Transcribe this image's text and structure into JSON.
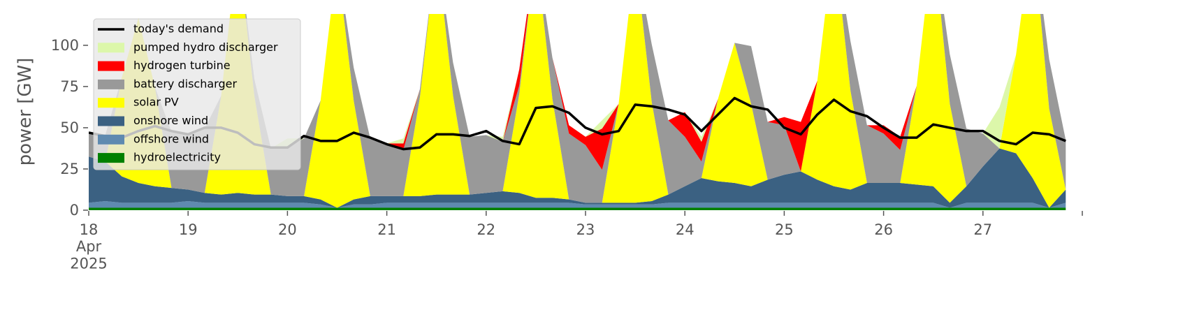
{
  "chart_data": {
    "type": "area",
    "ylabel": "power [GW]",
    "xlim": [
      0,
      240
    ],
    "ylim": [
      0,
      119
    ],
    "yticks": [
      0,
      25,
      50,
      75,
      100
    ],
    "xticks": [
      {
        "value": 0,
        "label": "18\nApr\n2025"
      },
      {
        "value": 24,
        "label": "19"
      },
      {
        "value": 48,
        "label": "20"
      },
      {
        "value": 72,
        "label": "21"
      },
      {
        "value": 96,
        "label": "22"
      },
      {
        "value": 120,
        "label": "23"
      },
      {
        "value": 144,
        "label": "24"
      },
      {
        "value": 168,
        "label": "25"
      },
      {
        "value": 192,
        "label": "26"
      },
      {
        "value": 216,
        "label": "27"
      },
      {
        "value": 240,
        "label": ""
      }
    ],
    "x": [
      0,
      4,
      8,
      12,
      16,
      20,
      24,
      28,
      32,
      36,
      40,
      44,
      48,
      52,
      56,
      60,
      64,
      68,
      72,
      76,
      80,
      84,
      88,
      92,
      96,
      100,
      104,
      108,
      112,
      116,
      120,
      124,
      128,
      132,
      136,
      140,
      144,
      148,
      152,
      156,
      160,
      164,
      168,
      172,
      176,
      180,
      184,
      188,
      192,
      196,
      200,
      204,
      208,
      212,
      216,
      220,
      224,
      228,
      232,
      236
    ],
    "series": [
      {
        "name": "today's demand",
        "type": "line",
        "color": "#000000",
        "values": [
          47,
          45,
          44,
          48,
          51,
          48,
          46,
          50,
          50,
          47,
          40,
          38,
          38,
          45,
          42,
          42,
          47,
          44,
          40,
          37,
          38,
          46,
          46,
          45,
          48,
          42,
          40,
          62,
          63,
          59,
          50,
          46,
          48,
          64,
          63,
          61,
          58,
          48,
          58,
          68,
          63,
          61,
          50,
          46,
          58,
          67,
          60,
          57,
          50,
          44,
          44,
          52,
          50,
          48,
          48,
          42,
          40,
          47,
          46,
          42
        ]
      },
      {
        "name": "pumped hydro discharger",
        "color": "#dcf7aa",
        "values": [
          0,
          0,
          0,
          0,
          0,
          0,
          0,
          0,
          0,
          0,
          0,
          0,
          5,
          0,
          0,
          0,
          0,
          0,
          0,
          3,
          0,
          0,
          0,
          0,
          0,
          3,
          0,
          0,
          0,
          0,
          0,
          5,
          0,
          0,
          0,
          0,
          0,
          3,
          0,
          0,
          0,
          0,
          0,
          0,
          0,
          0,
          0,
          0,
          0,
          0,
          0,
          0,
          0,
          0,
          0,
          25,
          0,
          0,
          0,
          0
        ]
      },
      {
        "name": "hydrogen turbine",
        "color": "#ff0000",
        "values": [
          0,
          0,
          0,
          0,
          0,
          0,
          0,
          0,
          0,
          0,
          0,
          0,
          0,
          0,
          0,
          0,
          0,
          0,
          0,
          4,
          0,
          0,
          0,
          0,
          0,
          0,
          10,
          0,
          0,
          5,
          5,
          25,
          0,
          0,
          0,
          0,
          15,
          12,
          0,
          0,
          0,
          0,
          5,
          30,
          0,
          0,
          0,
          0,
          5,
          8,
          0,
          0,
          0,
          0,
          0,
          0,
          0,
          0,
          0,
          0
        ]
      },
      {
        "name": "battery discharger",
        "color": "#999999",
        "values": [
          15,
          16,
          0,
          0,
          0,
          34,
          34,
          39,
          0,
          0,
          10,
          28,
          30,
          35,
          0,
          0,
          20,
          35,
          32,
          28,
          5,
          0,
          20,
          35,
          35,
          30,
          5,
          0,
          25,
          40,
          35,
          20,
          0,
          0,
          35,
          45,
          30,
          10,
          0,
          0,
          35,
          35,
          30,
          0,
          0,
          0,
          30,
          35,
          30,
          20,
          0,
          0,
          30,
          35,
          20,
          0,
          0,
          0,
          30,
          30
        ]
      },
      {
        "name": "solar PV",
        "color": "#ffff00",
        "values": [
          0,
          0,
          60,
          100,
          60,
          0,
          0,
          0,
          60,
          150,
          60,
          0,
          0,
          0,
          60,
          150,
          60,
          0,
          0,
          0,
          60,
          150,
          60,
          0,
          0,
          0,
          60,
          150,
          60,
          0,
          0,
          0,
          60,
          150,
          60,
          0,
          0,
          0,
          50,
          85,
          50,
          0,
          0,
          0,
          60,
          150,
          60,
          0,
          0,
          0,
          60,
          150,
          60,
          0,
          0,
          0,
          60,
          150,
          60,
          0
        ]
      },
      {
        "name": "onshore wind",
        "color": "#3b6182",
        "values": [
          28,
          24,
          16,
          12,
          10,
          9,
          7,
          6,
          5,
          6,
          5,
          5,
          4,
          4,
          3,
          0,
          3,
          5,
          4,
          4,
          4,
          5,
          5,
          5,
          6,
          7,
          6,
          3,
          3,
          2,
          1,
          1,
          1,
          1,
          2,
          5,
          10,
          15,
          13,
          12,
          10,
          14,
          17,
          19,
          14,
          10,
          8,
          12,
          12,
          12,
          11,
          10,
          3,
          10,
          22,
          33,
          30,
          15,
          0,
          8
        ]
      },
      {
        "name": "offshore wind",
        "color": "#5f8ab0",
        "values": [
          3,
          4,
          3,
          3,
          3,
          3,
          4,
          3,
          3,
          3,
          3,
          3,
          3,
          3,
          2,
          0,
          2,
          2,
          3,
          3,
          3,
          3,
          3,
          3,
          3,
          3,
          3,
          3,
          3,
          3,
          2,
          2,
          2,
          2,
          2,
          3,
          3,
          3,
          3,
          3,
          3,
          3,
          3,
          3,
          3,
          3,
          3,
          3,
          3,
          3,
          3,
          3,
          0,
          3,
          3,
          3,
          3,
          3,
          0,
          3
        ]
      },
      {
        "name": "hydroelectricity",
        "color": "#008000",
        "values": [
          1.5,
          1.5,
          1.5,
          1.5,
          1.5,
          1.5,
          1.5,
          1.5,
          1.5,
          1.5,
          1.5,
          1.5,
          1.5,
          1.5,
          1.5,
          1.5,
          1.5,
          1.5,
          1.5,
          1.5,
          1.5,
          1.5,
          1.5,
          1.5,
          1.5,
          1.5,
          1.5,
          1.5,
          1.5,
          1.5,
          1.5,
          1.5,
          1.5,
          1.5,
          1.5,
          1.5,
          1.5,
          1.5,
          1.5,
          1.5,
          1.5,
          1.5,
          1.5,
          1.5,
          1.5,
          1.5,
          1.5,
          1.5,
          1.5,
          1.5,
          1.5,
          1.5,
          1.5,
          1.5,
          1.5,
          1.5,
          1.5,
          1.5,
          1.5,
          1.5
        ]
      }
    ],
    "legend": "upper left"
  }
}
